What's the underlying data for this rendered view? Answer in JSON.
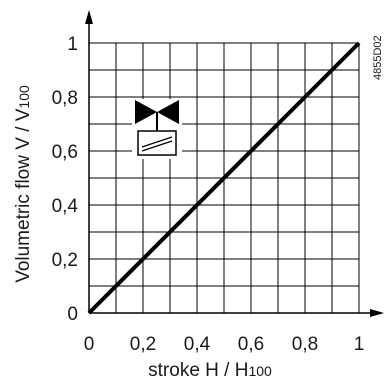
{
  "chart_data": {
    "type": "line",
    "xlabel": {
      "main": "stroke H / H",
      "sub": "100"
    },
    "ylabel": {
      "main": "Volumetric flow V / V",
      "sub": "100"
    },
    "code": "4855D02",
    "xlim": [
      0,
      1
    ],
    "ylim": [
      0,
      1
    ],
    "x_ticks": [
      "0",
      "0,2",
      "0,4",
      "0,6",
      "0,8",
      "1"
    ],
    "y_ticks": [
      "0",
      "0,2",
      "0,4",
      "0,6",
      "0,8",
      "1"
    ],
    "grid": true,
    "grid_step": 0.1,
    "series": [
      {
        "x": [
          0,
          1
        ],
        "y": [
          0,
          1
        ],
        "color": "#000000"
      }
    ],
    "icon": "valve-actuator-icon"
  }
}
